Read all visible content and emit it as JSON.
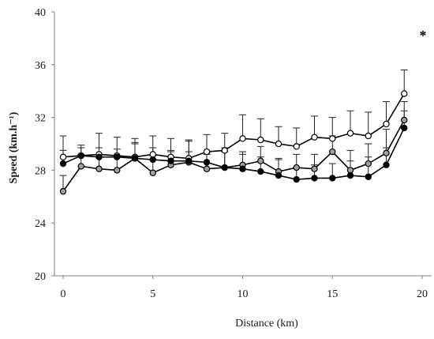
{
  "chart_data": {
    "type": "line",
    "xlabel": "Distance (km)",
    "ylabel": "Speed (km.h⁻¹)",
    "xlim": [
      0,
      20
    ],
    "ylim": [
      20,
      40
    ],
    "xticks": [
      0,
      5,
      10,
      15,
      20
    ],
    "yticks": [
      20,
      24,
      28,
      32,
      36,
      40
    ],
    "grid": false,
    "annotations": [
      {
        "text": "*",
        "x": 20,
        "y": 38.2
      }
    ],
    "x": [
      0,
      1,
      2,
      3,
      4,
      5,
      6,
      7,
      8,
      9,
      10,
      11,
      12,
      13,
      14,
      15,
      16,
      17,
      18,
      19,
      20
    ],
    "series": [
      {
        "marker": "open",
        "color": "#ffffff",
        "values": [
          29.0,
          29.1,
          29.2,
          29.1,
          29.0,
          29.2,
          29.0,
          28.9,
          29.4,
          29.5,
          30.4,
          30.3,
          30.0,
          29.8,
          30.5,
          30.4,
          30.8,
          30.6,
          31.5,
          33.8,
          null
        ],
        "error_up": [
          1.6,
          0.8,
          1.6,
          1.4,
          1.4,
          1.4,
          1.4,
          1.4,
          1.3,
          1.3,
          1.8,
          1.6,
          1.3,
          1.4,
          1.6,
          1.6,
          1.7,
          1.8,
          1.7,
          1.8,
          null
        ]
      },
      {
        "marker": "gray",
        "color": "#a0a0a0",
        "values": [
          26.4,
          28.3,
          28.1,
          28.0,
          28.9,
          27.8,
          28.4,
          28.6,
          28.1,
          28.2,
          28.4,
          28.7,
          27.9,
          28.2,
          28.1,
          29.4,
          28.0,
          28.5,
          29.3,
          31.8,
          null
        ],
        "error_up": [
          1.2,
          0.9,
          0.9,
          1.0,
          1.1,
          1.3,
          1.0,
          1.6,
          1.1,
          1.5,
          1.0,
          1.1,
          1.0,
          1.0,
          1.1,
          1.2,
          1.5,
          1.5,
          1.8,
          1.4,
          null
        ]
      },
      {
        "marker": "filled",
        "color": "#000000",
        "values": [
          28.5,
          29.1,
          29.0,
          29.0,
          28.9,
          28.8,
          28.7,
          28.7,
          28.6,
          28.2,
          28.1,
          27.9,
          27.6,
          27.3,
          27.4,
          27.4,
          27.6,
          27.5,
          28.4,
          31.2,
          null
        ],
        "error_up": [
          1.0,
          0.6,
          0.7,
          0.6,
          1.2,
          0.9,
          0.8,
          0.7,
          0.7,
          1.2,
          1.1,
          1.1,
          1.2,
          0.9,
          1.0,
          1.1,
          1.1,
          1.5,
          1.3,
          1.3,
          null
        ]
      }
    ]
  }
}
